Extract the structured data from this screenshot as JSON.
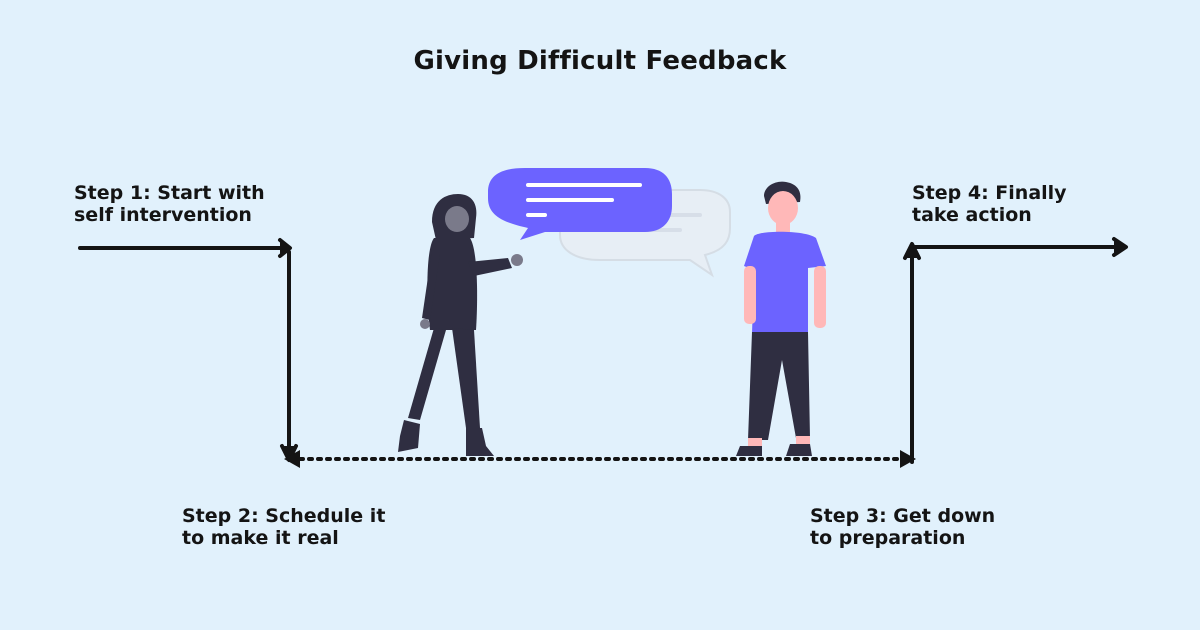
{
  "title": "Giving Difficult Feedback",
  "steps": [
    {
      "line1": "Step 1: Start with",
      "line2": "self intervention"
    },
    {
      "line1": "Step 2: Schedule it",
      "line2": "to make it real"
    },
    {
      "line1": "Step 3: Get down",
      "line2": "to preparation"
    },
    {
      "line1": "Step 4: Finally",
      "line2": "take action"
    }
  ],
  "colors": {
    "background": "#e1f1fc",
    "arrow": "#141414",
    "speech_bubble": "#6c63ff",
    "shirt": "#6c63ff",
    "pants": "#2f2e41",
    "skin": "#ffb8b8"
  }
}
